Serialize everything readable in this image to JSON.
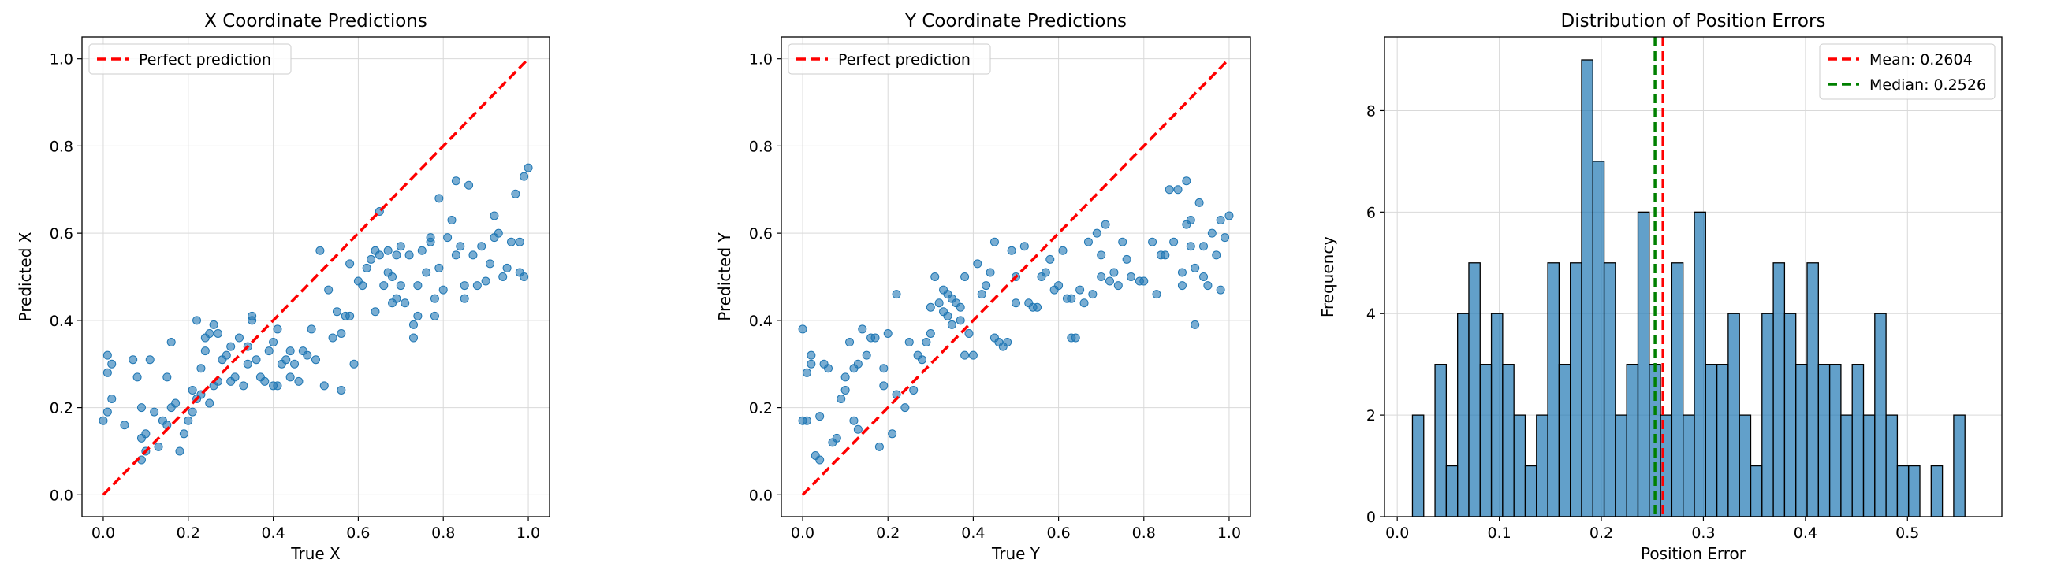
{
  "colors": {
    "scatter": "#1f77b4",
    "hist_fill": "#1f77b4",
    "perfect_line": "#ff0000",
    "mean_line": "#ff0000",
    "median_line": "#008000"
  },
  "chart_data": [
    {
      "type": "scatter",
      "title": "X Coordinate Predictions",
      "xlabel": "True X",
      "ylabel": "Predicted X",
      "xlim": [
        -0.05,
        1.05
      ],
      "ylim": [
        -0.05,
        1.05
      ],
      "xticks": [
        0.0,
        0.2,
        0.4,
        0.6,
        0.8,
        1.0
      ],
      "yticks": [
        0.0,
        0.2,
        0.4,
        0.6,
        0.8,
        1.0
      ],
      "tick_labels": [
        "0.0",
        "0.2",
        "0.4",
        "0.6",
        "0.8",
        "1.0"
      ],
      "grid": true,
      "legend": "upper left",
      "reference_line": {
        "name": "Perfect prediction",
        "x": [
          0,
          1
        ],
        "y": [
          0,
          1
        ]
      },
      "points": [
        [
          0.0,
          0.17
        ],
        [
          0.01,
          0.19
        ],
        [
          0.01,
          0.28
        ],
        [
          0.01,
          0.32
        ],
        [
          0.02,
          0.3
        ],
        [
          0.02,
          0.22
        ],
        [
          0.05,
          0.16
        ],
        [
          0.07,
          0.31
        ],
        [
          0.08,
          0.27
        ],
        [
          0.09,
          0.13
        ],
        [
          0.09,
          0.2
        ],
        [
          0.09,
          0.08
        ],
        [
          0.1,
          0.1
        ],
        [
          0.1,
          0.14
        ],
        [
          0.11,
          0.31
        ],
        [
          0.12,
          0.19
        ],
        [
          0.13,
          0.11
        ],
        [
          0.14,
          0.17
        ],
        [
          0.15,
          0.16
        ],
        [
          0.15,
          0.27
        ],
        [
          0.16,
          0.2
        ],
        [
          0.16,
          0.35
        ],
        [
          0.17,
          0.21
        ],
        [
          0.18,
          0.1
        ],
        [
          0.19,
          0.14
        ],
        [
          0.2,
          0.17
        ],
        [
          0.21,
          0.19
        ],
        [
          0.21,
          0.24
        ],
        [
          0.22,
          0.22
        ],
        [
          0.22,
          0.4
        ],
        [
          0.23,
          0.29
        ],
        [
          0.23,
          0.23
        ],
        [
          0.24,
          0.33
        ],
        [
          0.24,
          0.36
        ],
        [
          0.25,
          0.37
        ],
        [
          0.25,
          0.21
        ],
        [
          0.26,
          0.25
        ],
        [
          0.26,
          0.39
        ],
        [
          0.27,
          0.26
        ],
        [
          0.27,
          0.37
        ],
        [
          0.28,
          0.31
        ],
        [
          0.29,
          0.32
        ],
        [
          0.3,
          0.26
        ],
        [
          0.3,
          0.34
        ],
        [
          0.31,
          0.27
        ],
        [
          0.32,
          0.36
        ],
        [
          0.33,
          0.25
        ],
        [
          0.34,
          0.3
        ],
        [
          0.34,
          0.34
        ],
        [
          0.35,
          0.41
        ],
        [
          0.35,
          0.4
        ],
        [
          0.36,
          0.31
        ],
        [
          0.37,
          0.27
        ],
        [
          0.38,
          0.26
        ],
        [
          0.39,
          0.33
        ],
        [
          0.4,
          0.35
        ],
        [
          0.4,
          0.25
        ],
        [
          0.41,
          0.25
        ],
        [
          0.41,
          0.38
        ],
        [
          0.42,
          0.3
        ],
        [
          0.43,
          0.31
        ],
        [
          0.44,
          0.33
        ],
        [
          0.44,
          0.27
        ],
        [
          0.45,
          0.3
        ],
        [
          0.46,
          0.26
        ],
        [
          0.47,
          0.33
        ],
        [
          0.48,
          0.32
        ],
        [
          0.49,
          0.38
        ],
        [
          0.5,
          0.31
        ],
        [
          0.51,
          0.56
        ],
        [
          0.52,
          0.25
        ],
        [
          0.53,
          0.47
        ],
        [
          0.54,
          0.36
        ],
        [
          0.55,
          0.42
        ],
        [
          0.56,
          0.37
        ],
        [
          0.56,
          0.24
        ],
        [
          0.57,
          0.41
        ],
        [
          0.58,
          0.41
        ],
        [
          0.58,
          0.53
        ],
        [
          0.59,
          0.3
        ],
        [
          0.6,
          0.49
        ],
        [
          0.61,
          0.48
        ],
        [
          0.62,
          0.52
        ],
        [
          0.63,
          0.54
        ],
        [
          0.64,
          0.56
        ],
        [
          0.64,
          0.42
        ],
        [
          0.65,
          0.55
        ],
        [
          0.65,
          0.65
        ],
        [
          0.66,
          0.48
        ],
        [
          0.67,
          0.56
        ],
        [
          0.67,
          0.51
        ],
        [
          0.68,
          0.5
        ],
        [
          0.68,
          0.44
        ],
        [
          0.69,
          0.45
        ],
        [
          0.69,
          0.55
        ],
        [
          0.7,
          0.48
        ],
        [
          0.7,
          0.57
        ],
        [
          0.71,
          0.44
        ],
        [
          0.72,
          0.55
        ],
        [
          0.73,
          0.36
        ],
        [
          0.73,
          0.39
        ],
        [
          0.74,
          0.41
        ],
        [
          0.74,
          0.48
        ],
        [
          0.75,
          0.56
        ],
        [
          0.76,
          0.51
        ],
        [
          0.77,
          0.58
        ],
        [
          0.77,
          0.59
        ],
        [
          0.78,
          0.41
        ],
        [
          0.78,
          0.45
        ],
        [
          0.79,
          0.68
        ],
        [
          0.79,
          0.52
        ],
        [
          0.8,
          0.47
        ],
        [
          0.81,
          0.59
        ],
        [
          0.82,
          0.63
        ],
        [
          0.83,
          0.72
        ],
        [
          0.83,
          0.55
        ],
        [
          0.84,
          0.57
        ],
        [
          0.85,
          0.45
        ],
        [
          0.85,
          0.48
        ],
        [
          0.86,
          0.71
        ],
        [
          0.87,
          0.55
        ],
        [
          0.88,
          0.48
        ],
        [
          0.89,
          0.57
        ],
        [
          0.9,
          0.49
        ],
        [
          0.91,
          0.53
        ],
        [
          0.92,
          0.64
        ],
        [
          0.92,
          0.59
        ],
        [
          0.93,
          0.6
        ],
        [
          0.94,
          0.5
        ],
        [
          0.95,
          0.52
        ],
        [
          0.96,
          0.58
        ],
        [
          0.97,
          0.69
        ],
        [
          0.98,
          0.51
        ],
        [
          0.98,
          0.58
        ],
        [
          0.99,
          0.5
        ],
        [
          0.99,
          0.73
        ],
        [
          1.0,
          0.75
        ]
      ]
    },
    {
      "type": "scatter",
      "title": "Y Coordinate Predictions",
      "xlabel": "True Y",
      "ylabel": "Predicted Y",
      "xlim": [
        -0.05,
        1.05
      ],
      "ylim": [
        -0.05,
        1.05
      ],
      "xticks": [
        0.0,
        0.2,
        0.4,
        0.6,
        0.8,
        1.0
      ],
      "yticks": [
        0.0,
        0.2,
        0.4,
        0.6,
        0.8,
        1.0
      ],
      "tick_labels": [
        "0.0",
        "0.2",
        "0.4",
        "0.6",
        "0.8",
        "1.0"
      ],
      "grid": true,
      "legend": "upper left",
      "reference_line": {
        "name": "Perfect prediction",
        "x": [
          0,
          1
        ],
        "y": [
          0,
          1
        ]
      },
      "points": [
        [
          0.0,
          0.38
        ],
        [
          0.0,
          0.17
        ],
        [
          0.01,
          0.17
        ],
        [
          0.01,
          0.28
        ],
        [
          0.02,
          0.32
        ],
        [
          0.02,
          0.3
        ],
        [
          0.03,
          0.09
        ],
        [
          0.04,
          0.08
        ],
        [
          0.04,
          0.18
        ],
        [
          0.05,
          0.3
        ],
        [
          0.06,
          0.29
        ],
        [
          0.07,
          0.12
        ],
        [
          0.08,
          0.13
        ],
        [
          0.09,
          0.22
        ],
        [
          0.1,
          0.27
        ],
        [
          0.1,
          0.24
        ],
        [
          0.11,
          0.35
        ],
        [
          0.12,
          0.29
        ],
        [
          0.12,
          0.17
        ],
        [
          0.13,
          0.3
        ],
        [
          0.13,
          0.15
        ],
        [
          0.14,
          0.38
        ],
        [
          0.15,
          0.32
        ],
        [
          0.16,
          0.36
        ],
        [
          0.17,
          0.36
        ],
        [
          0.18,
          0.11
        ],
        [
          0.19,
          0.25
        ],
        [
          0.19,
          0.29
        ],
        [
          0.2,
          0.37
        ],
        [
          0.21,
          0.14
        ],
        [
          0.22,
          0.46
        ],
        [
          0.22,
          0.23
        ],
        [
          0.24,
          0.2
        ],
        [
          0.25,
          0.35
        ],
        [
          0.26,
          0.24
        ],
        [
          0.27,
          0.32
        ],
        [
          0.28,
          0.31
        ],
        [
          0.29,
          0.35
        ],
        [
          0.3,
          0.43
        ],
        [
          0.3,
          0.37
        ],
        [
          0.31,
          0.5
        ],
        [
          0.32,
          0.44
        ],
        [
          0.33,
          0.42
        ],
        [
          0.33,
          0.47
        ],
        [
          0.34,
          0.46
        ],
        [
          0.34,
          0.41
        ],
        [
          0.35,
          0.39
        ],
        [
          0.35,
          0.45
        ],
        [
          0.36,
          0.44
        ],
        [
          0.37,
          0.4
        ],
        [
          0.37,
          0.43
        ],
        [
          0.38,
          0.5
        ],
        [
          0.38,
          0.32
        ],
        [
          0.39,
          0.37
        ],
        [
          0.4,
          0.32
        ],
        [
          0.41,
          0.53
        ],
        [
          0.42,
          0.46
        ],
        [
          0.43,
          0.48
        ],
        [
          0.44,
          0.51
        ],
        [
          0.45,
          0.58
        ],
        [
          0.45,
          0.36
        ],
        [
          0.46,
          0.35
        ],
        [
          0.47,
          0.34
        ],
        [
          0.48,
          0.35
        ],
        [
          0.49,
          0.56
        ],
        [
          0.5,
          0.44
        ],
        [
          0.5,
          0.5
        ],
        [
          0.52,
          0.57
        ],
        [
          0.53,
          0.44
        ],
        [
          0.54,
          0.43
        ],
        [
          0.55,
          0.43
        ],
        [
          0.56,
          0.5
        ],
        [
          0.57,
          0.51
        ],
        [
          0.58,
          0.54
        ],
        [
          0.59,
          0.47
        ],
        [
          0.6,
          0.48
        ],
        [
          0.61,
          0.56
        ],
        [
          0.62,
          0.45
        ],
        [
          0.63,
          0.45
        ],
        [
          0.63,
          0.36
        ],
        [
          0.64,
          0.36
        ],
        [
          0.65,
          0.47
        ],
        [
          0.66,
          0.44
        ],
        [
          0.67,
          0.58
        ],
        [
          0.68,
          0.46
        ],
        [
          0.69,
          0.6
        ],
        [
          0.7,
          0.55
        ],
        [
          0.7,
          0.5
        ],
        [
          0.71,
          0.62
        ],
        [
          0.72,
          0.49
        ],
        [
          0.73,
          0.51
        ],
        [
          0.74,
          0.48
        ],
        [
          0.75,
          0.58
        ],
        [
          0.76,
          0.54
        ],
        [
          0.77,
          0.5
        ],
        [
          0.79,
          0.49
        ],
        [
          0.8,
          0.49
        ],
        [
          0.82,
          0.58
        ],
        [
          0.83,
          0.46
        ],
        [
          0.84,
          0.55
        ],
        [
          0.85,
          0.55
        ],
        [
          0.86,
          0.7
        ],
        [
          0.87,
          0.58
        ],
        [
          0.88,
          0.7
        ],
        [
          0.89,
          0.48
        ],
        [
          0.89,
          0.51
        ],
        [
          0.9,
          0.72
        ],
        [
          0.9,
          0.62
        ],
        [
          0.91,
          0.57
        ],
        [
          0.91,
          0.63
        ],
        [
          0.92,
          0.52
        ],
        [
          0.92,
          0.39
        ],
        [
          0.93,
          0.67
        ],
        [
          0.94,
          0.5
        ],
        [
          0.94,
          0.57
        ],
        [
          0.95,
          0.48
        ],
        [
          0.96,
          0.6
        ],
        [
          0.97,
          0.55
        ],
        [
          0.98,
          0.47
        ],
        [
          0.98,
          0.63
        ],
        [
          0.99,
          0.59
        ],
        [
          1.0,
          0.64
        ]
      ]
    },
    {
      "type": "bar",
      "title": "Distribution of Position Errors",
      "xlabel": "Position Error",
      "ylabel": "Frequency",
      "xlim": [
        -0.0125,
        0.5925
      ],
      "ylim": [
        0,
        9.45
      ],
      "xticks": [
        0.0,
        0.1,
        0.2,
        0.3,
        0.4,
        0.5
      ],
      "xtick_labels": [
        "0.0",
        "0.1",
        "0.2",
        "0.3",
        "0.4",
        "0.5"
      ],
      "yticks": [
        0,
        2,
        4,
        6,
        8
      ],
      "ytick_labels": [
        "0",
        "2",
        "4",
        "6",
        "8"
      ],
      "grid": true,
      "legend": "upper right",
      "bin_start": 0.0149,
      "bin_width": 0.01105,
      "counts": [
        2,
        0,
        3,
        1,
        4,
        5,
        3,
        4,
        3,
        2,
        1,
        2,
        5,
        3,
        5,
        9,
        7,
        5,
        2,
        3,
        6,
        3,
        2,
        5,
        2,
        6,
        3,
        3,
        4,
        2,
        1,
        4,
        5,
        4,
        3,
        5,
        3,
        3,
        2,
        3,
        2,
        4,
        2,
        1,
        1,
        0,
        1,
        0,
        2
      ],
      "mean": {
        "name": "Mean: 0.2604",
        "value": 0.2604
      },
      "median": {
        "name": "Median: 0.2526",
        "value": 0.2526
      }
    }
  ]
}
